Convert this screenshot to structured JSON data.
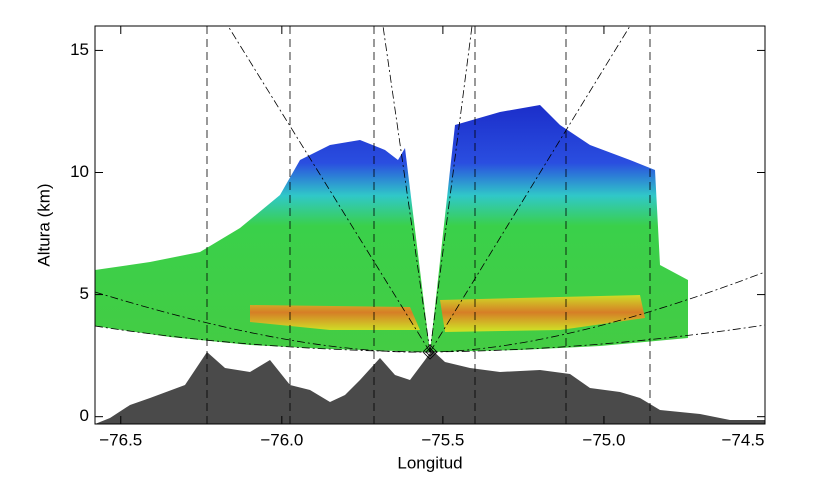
{
  "chart_data": {
    "type": "radar-section",
    "xlabel": "Longitud",
    "ylabel": "Altura (km)",
    "xlim": [
      -76.58,
      -74.5
    ],
    "ylim": [
      -0.3,
      16
    ],
    "xticks": [
      {
        "value": -76.5,
        "label": "−76.5"
      },
      {
        "value": -76.0,
        "label": "−76.0"
      },
      {
        "value": -75.5,
        "label": "−75.5"
      },
      {
        "value": -75.0,
        "label": "−75.0"
      },
      {
        "value": -74.5,
        "label": "−74.5"
      }
    ],
    "yticks": [
      0,
      5,
      10,
      15
    ]
  }
}
